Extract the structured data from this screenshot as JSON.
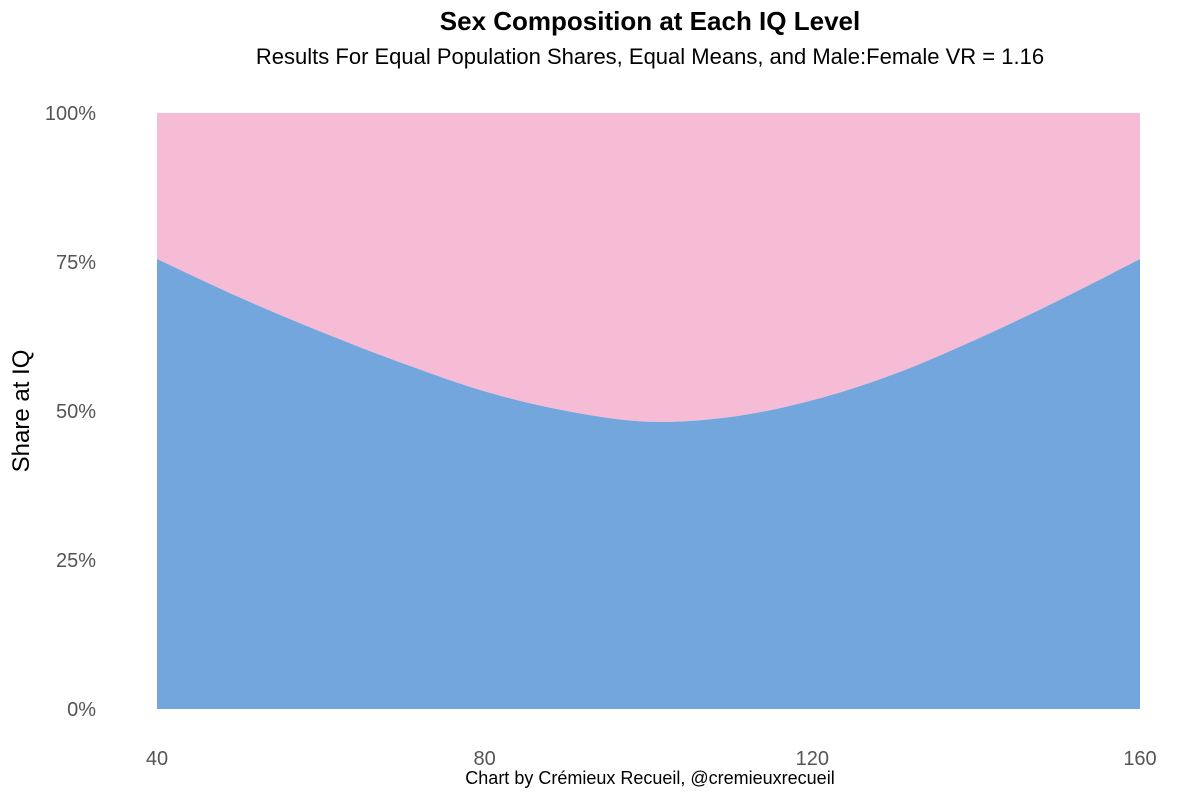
{
  "chart_data": {
    "type": "area",
    "stacked": true,
    "title": "Sex Composition at Each IQ Level",
    "subtitle": "Results For Equal Population Shares, Equal Means, and Male:Female VR = 1.16",
    "xlabel": "",
    "ylabel": "Share at IQ",
    "caption": "Chart by Crémieux Recueil, @cremieuxrecueil",
    "xlim": [
      40,
      160
    ],
    "ylim": [
      0,
      100
    ],
    "x_ticks": [
      "40",
      "80",
      "120",
      "160"
    ],
    "y_ticks": [
      "0%",
      "25%",
      "50%",
      "75%",
      "100%"
    ],
    "grid": false,
    "legend": "none",
    "colors": {
      "male": "#74a6de",
      "female": "#f6bcd6"
    },
    "x": [
      40,
      50,
      60,
      70,
      80,
      90,
      100,
      110,
      120,
      130,
      140,
      150,
      160
    ],
    "series": [
      {
        "values": [
          75.5,
          69.1,
          63.3,
          58.0,
          53.3,
          50.0,
          48.2,
          49.0,
          51.8,
          56.2,
          62.0,
          68.5,
          75.5
        ]
      },
      {
        "values": [
          24.5,
          30.9,
          36.7,
          42.0,
          46.7,
          50.0,
          51.8,
          51.0,
          48.2,
          43.8,
          38.0,
          31.5,
          24.5
        ]
      }
    ]
  }
}
